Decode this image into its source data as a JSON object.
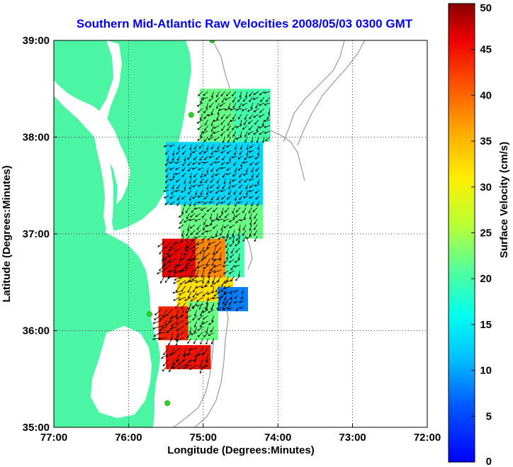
{
  "title": "Southern Mid-Atlantic Raw Velocities 2008/05/03 0300 GMT",
  "xlabel": "Longitude (Degrees:Minutes)",
  "ylabel": "Latitude (Degrees:Minutes)",
  "colorbar_label": "Surface Velocity (cm/s)",
  "x_ticks": [
    {
      "value": -77,
      "label": "77:00"
    },
    {
      "value": -76,
      "label": "76:00"
    },
    {
      "value": -75,
      "label": "75:00"
    },
    {
      "value": -74,
      "label": "74:00"
    },
    {
      "value": -73,
      "label": "73:00"
    },
    {
      "value": -72,
      "label": "72:00"
    }
  ],
  "y_ticks": [
    {
      "value": 35,
      "label": "35:00"
    },
    {
      "value": 36,
      "label": "36:00"
    },
    {
      "value": 37,
      "label": "37:00"
    },
    {
      "value": 38,
      "label": "38:00"
    },
    {
      "value": 39,
      "label": "39:00"
    }
  ],
  "colorbar_ticks": [
    {
      "value": 0,
      "label": "0"
    },
    {
      "value": 5,
      "label": "5"
    },
    {
      "value": 10,
      "label": "10"
    },
    {
      "value": 15,
      "label": "15"
    },
    {
      "value": 20,
      "label": "20"
    },
    {
      "value": 25,
      "label": "25"
    },
    {
      "value": 30,
      "label": "30"
    },
    {
      "value": 35,
      "label": "35"
    },
    {
      "value": 40,
      "label": "40"
    },
    {
      "value": 45,
      "label": "45"
    },
    {
      "value": 50,
      "label": "50"
    }
  ],
  "colors": {
    "title": "#0000ff",
    "land": "#4cf5a4",
    "isobath": "#9a9a9a",
    "station": "#22dd22",
    "arrow": "#000000"
  },
  "chart_data": {
    "type": "heatmap",
    "xlim": [
      -77,
      -72
    ],
    "ylim": [
      35,
      39
    ],
    "clim": [
      0,
      50
    ],
    "grid": true,
    "colormap": "jet",
    "velocity_regions": [
      {
        "lon": [
          -75.05,
          -74.6
        ],
        "lat": [
          37.95,
          38.5
        ],
        "velocity": 22
      },
      {
        "lon": [
          -74.6,
          -74.1
        ],
        "lat": [
          37.95,
          38.5
        ],
        "velocity": 20
      },
      {
        "lon": [
          -75.5,
          -74.2
        ],
        "lat": [
          37.3,
          37.95
        ],
        "velocity": 13
      },
      {
        "lon": [
          -75.3,
          -74.2
        ],
        "lat": [
          36.95,
          37.3
        ],
        "velocity": 22
      },
      {
        "lon": [
          -75.55,
          -75.1
        ],
        "lat": [
          36.55,
          36.95
        ],
        "velocity": 46
      },
      {
        "lon": [
          -75.1,
          -74.7
        ],
        "lat": [
          36.55,
          36.95
        ],
        "velocity": 38
      },
      {
        "lon": [
          -74.7,
          -74.45
        ],
        "lat": [
          36.55,
          37.0
        ],
        "velocity": 20
      },
      {
        "lon": [
          -75.35,
          -74.6
        ],
        "lat": [
          36.25,
          36.55
        ],
        "velocity": 32
      },
      {
        "lon": [
          -74.8,
          -74.4
        ],
        "lat": [
          36.2,
          36.45
        ],
        "velocity": 8
      },
      {
        "lon": [
          -75.6,
          -75.2
        ],
        "lat": [
          35.9,
          36.25
        ],
        "velocity": 44
      },
      {
        "lon": [
          -75.2,
          -74.8
        ],
        "lat": [
          35.9,
          36.3
        ],
        "velocity": 22
      },
      {
        "lon": [
          -75.5,
          -74.9
        ],
        "lat": [
          35.6,
          35.85
        ],
        "velocity": 45
      }
    ],
    "stations": [
      {
        "lon": -74.88,
        "lat": 39.0
      },
      {
        "lon": -75.16,
        "lat": 38.23
      },
      {
        "lon": -75.72,
        "lat": 36.17
      },
      {
        "lon": -75.48,
        "lat": 35.25
      }
    ]
  }
}
